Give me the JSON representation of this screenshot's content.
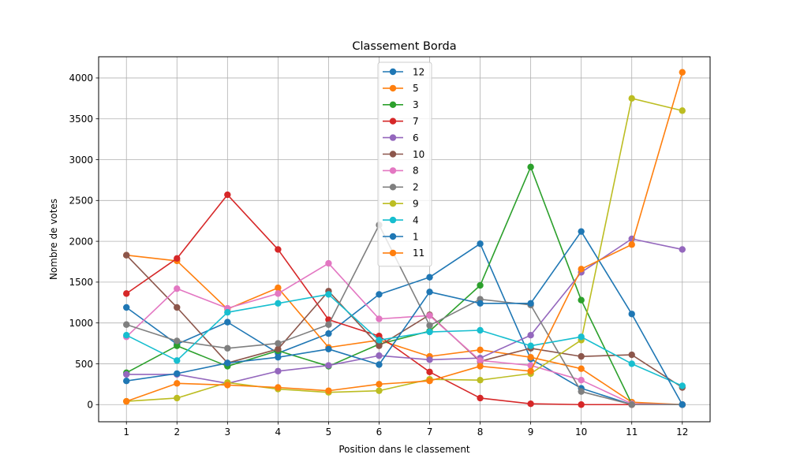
{
  "chart_data": {
    "type": "line",
    "title": "Classement Borda",
    "xlabel": "Position dans le classement",
    "ylabel": "Nombre de votes",
    "x": [
      1,
      2,
      3,
      4,
      5,
      6,
      7,
      8,
      9,
      10,
      11,
      12
    ],
    "xticks": [
      "1",
      "2",
      "3",
      "4",
      "5",
      "6",
      "7",
      "8",
      "9",
      "10",
      "11",
      "12"
    ],
    "yticks": [
      "0",
      "500",
      "1000",
      "1500",
      "2000",
      "2500",
      "3000",
      "3500",
      "4000"
    ],
    "xlim": [
      0.45,
      12.55
    ],
    "ylim": [
      -210,
      4260
    ],
    "grid": true,
    "legend_position": "upper-center",
    "series": [
      {
        "name": "12",
        "color": "#1f77b4",
        "values": [
          1190,
          740,
          1010,
          630,
          870,
          1350,
          1560,
          1970,
          560,
          200,
          0,
          0
        ]
      },
      {
        "name": "5",
        "color": "#ff7f0e",
        "values": [
          1830,
          1760,
          1170,
          1430,
          700,
          790,
          590,
          670,
          580,
          440,
          30,
          0
        ]
      },
      {
        "name": "3",
        "color": "#2ca02c",
        "values": [
          390,
          720,
          470,
          660,
          470,
          740,
          900,
          1460,
          2910,
          1280,
          10,
          0
        ]
      },
      {
        "name": "7",
        "color": "#d62728",
        "values": [
          1360,
          1790,
          2570,
          1900,
          1040,
          840,
          400,
          80,
          10,
          0,
          0,
          0
        ]
      },
      {
        "name": "6",
        "color": "#9467bd",
        "values": [
          370,
          370,
          260,
          410,
          480,
          600,
          550,
          570,
          850,
          1620,
          2030,
          1900
        ]
      },
      {
        "name": "10",
        "color": "#8c564b",
        "values": [
          1830,
          1190,
          510,
          680,
          1390,
          720,
          1100,
          530,
          690,
          590,
          610,
          210
        ]
      },
      {
        "name": "8",
        "color": "#e377c2",
        "values": [
          830,
          1420,
          1180,
          1360,
          1730,
          1050,
          1090,
          540,
          480,
          300,
          10,
          0
        ]
      },
      {
        "name": "2",
        "color": "#7f7f7f",
        "values": [
          980,
          780,
          690,
          750,
          980,
          2200,
          970,
          1290,
          1220,
          160,
          0,
          0
        ]
      },
      {
        "name": "9",
        "color": "#bcbd22",
        "values": [
          40,
          80,
          270,
          190,
          150,
          170,
          310,
          300,
          380,
          790,
          3750,
          3600
        ]
      },
      {
        "name": "4",
        "color": "#17becf",
        "values": [
          850,
          540,
          1130,
          1240,
          1350,
          790,
          890,
          910,
          720,
          830,
          500,
          230
        ]
      },
      {
        "name": "1",
        "color": "#1f77b4",
        "values": [
          290,
          380,
          510,
          580,
          680,
          490,
          1380,
          1240,
          1240,
          2120,
          1110,
          0
        ]
      },
      {
        "name": "11",
        "color": "#ff7f0e",
        "values": [
          40,
          260,
          240,
          210,
          170,
          250,
          290,
          470,
          410,
          1660,
          1960,
          4070
        ]
      }
    ]
  }
}
